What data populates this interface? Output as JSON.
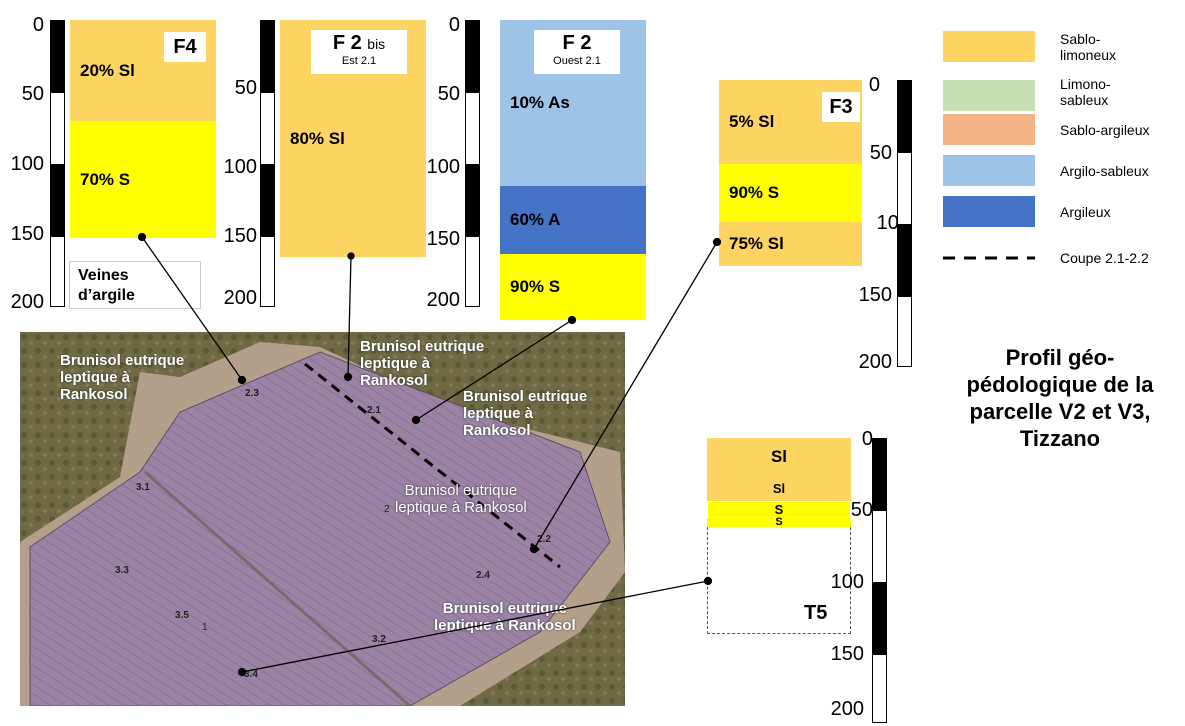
{
  "columns": {
    "f4": {
      "title": "F4",
      "layers": [
        "20% Sl",
        "70% S"
      ],
      "ticks": [
        "0",
        "50",
        "100",
        "150",
        "200"
      ]
    },
    "f2bis": {
      "title": "F 2",
      "title_suffix": "bis",
      "subtitle": "Est 2.1",
      "layers": [
        "80% Sl"
      ],
      "ticks": [
        "50",
        "100",
        "150",
        "200"
      ]
    },
    "f2": {
      "title": "F 2",
      "subtitle": "Ouest 2.1",
      "layers": [
        "10% As",
        "60% A",
        "90% S"
      ],
      "ticks": [
        "0",
        "50",
        "100",
        "150",
        "200"
      ]
    },
    "f3": {
      "title": "F3",
      "layers": [
        "5% Sl",
        "90% S",
        "75% Sl"
      ],
      "ticks": [
        "0",
        "50",
        "100",
        "150",
        "200"
      ]
    },
    "t5": {
      "title": "T5",
      "layers": [
        "Sl",
        "Sl",
        "S",
        "S"
      ],
      "ticks": [
        "0",
        "50",
        "100",
        "150",
        "200"
      ]
    }
  },
  "veines_label": "Veines\nd’argile",
  "map": {
    "labels": [
      "Brunisol eutrique\nleptique à\nRankosol",
      "Brunisol eutrique\nleptique à\nRankosol",
      "Brunisol eutrique\nleptique à\nRankosol",
      "Brunisol eutrique\nleptique à Rankosol",
      "Brunisol eutrique\nleptique à Rankosol"
    ],
    "points": [
      "2.3",
      "2.1",
      "3.1",
      "2",
      "2.2",
      "3.3",
      "2.4",
      "3.5",
      "1",
      "3.2",
      "3.4"
    ]
  },
  "legend": {
    "items": [
      {
        "label": "Sablo-\nlimoneux",
        "color": "#fdd462"
      },
      {
        "label": "Limono-\nsableux",
        "color": "#c5e0b4"
      },
      {
        "label": "Sablo-argileux",
        "color": "#f4b183"
      },
      {
        "label": "Argilo-sableux",
        "color": "#9dc3e6"
      },
      {
        "label": "Argileux",
        "color": "#4472c4"
      }
    ],
    "dashed_label": "Coupe 2.1-2.2"
  },
  "title": "Profil géo-\npédologique de la\nparcelle V2 et V3,\nTizzano",
  "colors": {
    "sablo_limoneux": "#fdd462",
    "sable": "#ffff00",
    "argilo_sableux": "#9dc3e6",
    "argileux": "#4472c4"
  }
}
